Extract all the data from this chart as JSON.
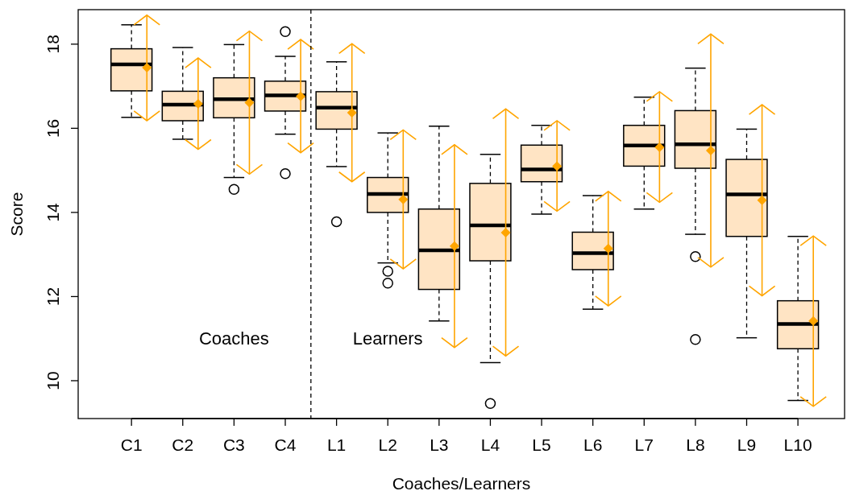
{
  "chart_data": {
    "type": "box",
    "xlabel": "Coaches/Learners",
    "ylabel": "Score",
    "categories": [
      "C1",
      "C2",
      "C3",
      "C4",
      "L1",
      "L2",
      "L3",
      "L4",
      "L5",
      "L6",
      "L7",
      "L8",
      "L9",
      "L10"
    ],
    "ylim": [
      9.1,
      18.82
    ],
    "yticks": [
      10,
      12,
      14,
      16,
      18
    ],
    "grid": false,
    "series": [
      {
        "color": "#ffe4c4",
        "boxes": [
          {
            "low": 16.26,
            "q1": 16.89,
            "median": 17.52,
            "q3": 17.89,
            "high": 18.46
          },
          {
            "low": 15.74,
            "q1": 16.18,
            "median": 16.56,
            "q3": 16.88,
            "high": 17.92
          },
          {
            "low": 14.83,
            "q1": 16.25,
            "median": 16.69,
            "q3": 17.2,
            "high": 17.99,
            "outliers": [
              14.55
            ]
          },
          {
            "low": 15.86,
            "q1": 16.41,
            "median": 16.78,
            "q3": 17.12,
            "high": 17.71,
            "outliers": [
              18.3,
              14.92
            ]
          },
          {
            "low": 15.09,
            "q1": 15.98,
            "median": 16.49,
            "q3": 16.87,
            "high": 17.58,
            "outliers": [
              13.78
            ]
          },
          {
            "low": 12.8,
            "q1": 14.0,
            "median": 14.44,
            "q3": 14.83,
            "high": 15.89,
            "outliers": [
              12.6,
              12.32
            ]
          },
          {
            "low": 11.42,
            "q1": 12.17,
            "median": 13.1,
            "q3": 14.08,
            "high": 16.05
          },
          {
            "low": 10.43,
            "q1": 12.85,
            "median": 13.69,
            "q3": 14.69,
            "high": 15.38,
            "outliers": [
              9.46
            ]
          },
          {
            "low": 13.96,
            "q1": 14.73,
            "median": 15.02,
            "q3": 15.6,
            "high": 16.07
          },
          {
            "low": 11.7,
            "q1": 12.64,
            "median": 13.03,
            "q3": 13.53,
            "high": 14.4
          },
          {
            "low": 14.08,
            "q1": 15.1,
            "median": 15.59,
            "q3": 16.07,
            "high": 16.74
          },
          {
            "low": 13.48,
            "q1": 15.05,
            "median": 15.62,
            "q3": 16.42,
            "high": 17.43,
            "outliers": [
              12.95,
              10.98
            ]
          },
          {
            "low": 11.02,
            "q1": 13.43,
            "median": 14.43,
            "q3": 15.26,
            "high": 15.98
          },
          {
            "low": 9.53,
            "q1": 10.76,
            "median": 11.35,
            "q3": 11.9,
            "high": 13.43
          }
        ]
      },
      {
        "type": "scatter",
        "color": "#ffa500",
        "marker": "diamond",
        "x": [
          "C1",
          "C2",
          "C3",
          "C4",
          "L1",
          "L2",
          "L3",
          "L4",
          "L5",
          "L6",
          "L7",
          "L8",
          "L9",
          "L10"
        ],
        "values": [
          17.44,
          16.58,
          16.61,
          16.76,
          16.37,
          14.31,
          13.2,
          13.52,
          15.1,
          13.14,
          15.55,
          15.47,
          14.29,
          11.42
        ],
        "errors": [
          [
            16.18,
            18.69
          ],
          [
            15.5,
            17.67
          ],
          [
            14.91,
            18.31
          ],
          [
            15.42,
            18.11
          ],
          [
            14.73,
            18.01
          ],
          [
            12.66,
            15.96
          ],
          [
            10.79,
            15.61
          ],
          [
            10.59,
            16.46
          ],
          [
            14.03,
            16.18
          ],
          [
            11.78,
            14.5
          ],
          [
            14.24,
            16.87
          ],
          [
            12.7,
            18.24
          ],
          [
            12.02,
            16.56
          ],
          [
            9.39,
            13.44
          ]
        ]
      }
    ],
    "annotations": [
      "Coaches",
      "Learners"
    ]
  }
}
